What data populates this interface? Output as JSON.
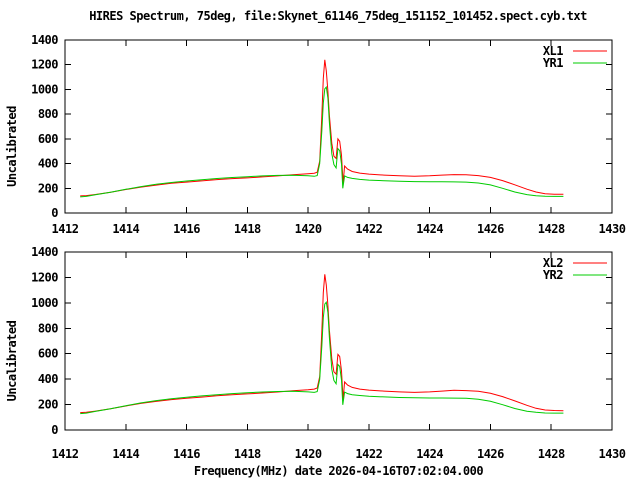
{
  "title": "HIRES Spectrum, 75deg, file:Skynet_61146_75deg_151152_101452.spect.cyb.txt",
  "colors": {
    "background": "#ffffff",
    "axis": "#000000",
    "xl_series": "#ff0000",
    "yr_series": "#00cc00"
  },
  "chart_data": [
    {
      "type": "line",
      "title": "",
      "xlabel": "",
      "ylabel": "Uncalibrated",
      "xlim": [
        1412,
        1430
      ],
      "ylim": [
        0,
        1400
      ],
      "xticks": [
        1412,
        1414,
        1416,
        1418,
        1420,
        1422,
        1424,
        1426,
        1428,
        1430
      ],
      "yticks": [
        0,
        200,
        400,
        600,
        800,
        1000,
        1200,
        1400
      ],
      "grid": false,
      "legend_position": "top-right",
      "series": [
        {
          "name": "XL1",
          "color": "#ff0000",
          "points": [
            [
              1412.5,
              138
            ],
            [
              1412.7,
              141
            ],
            [
              1413,
              150
            ],
            [
              1413.5,
              168
            ],
            [
              1414,
              190
            ],
            [
              1414.5,
              210
            ],
            [
              1415,
              226
            ],
            [
              1415.5,
              240
            ],
            [
              1416,
              250
            ],
            [
              1416.5,
              260
            ],
            [
              1417,
              270
            ],
            [
              1417.5,
              278
            ],
            [
              1418,
              284
            ],
            [
              1418.5,
              292
            ],
            [
              1419,
              300
            ],
            [
              1419.5,
              310
            ],
            [
              1420,
              318
            ],
            [
              1420.2,
              322
            ],
            [
              1420.3,
              330
            ],
            [
              1420.38,
              420
            ],
            [
              1420.45,
              780
            ],
            [
              1420.5,
              1090
            ],
            [
              1420.55,
              1240
            ],
            [
              1420.6,
              1150
            ],
            [
              1420.65,
              985
            ],
            [
              1420.7,
              790
            ],
            [
              1420.78,
              565
            ],
            [
              1420.85,
              460
            ],
            [
              1420.92,
              442
            ],
            [
              1420.98,
              600
            ],
            [
              1421.04,
              580
            ],
            [
              1421.1,
              468
            ],
            [
              1421.15,
              240
            ],
            [
              1421.2,
              380
            ],
            [
              1421.3,
              355
            ],
            [
              1421.45,
              336
            ],
            [
              1421.7,
              323
            ],
            [
              1422,
              315
            ],
            [
              1422.5,
              307
            ],
            [
              1423,
              301
            ],
            [
              1423.5,
              297
            ],
            [
              1424,
              301
            ],
            [
              1424.4,
              307
            ],
            [
              1424.8,
              311
            ],
            [
              1425.2,
              309
            ],
            [
              1425.6,
              303
            ],
            [
              1426,
              288
            ],
            [
              1426.4,
              262
            ],
            [
              1426.8,
              228
            ],
            [
              1427.2,
              193
            ],
            [
              1427.5,
              170
            ],
            [
              1427.8,
              156
            ],
            [
              1428.1,
              152
            ],
            [
              1428.4,
              151
            ]
          ]
        },
        {
          "name": "YR1",
          "color": "#00cc00",
          "points": [
            [
              1412.5,
              130
            ],
            [
              1412.7,
              134
            ],
            [
              1413,
              147
            ],
            [
              1413.5,
              168
            ],
            [
              1414,
              192
            ],
            [
              1414.5,
              214
            ],
            [
              1415,
              232
            ],
            [
              1415.5,
              247
            ],
            [
              1416,
              259
            ],
            [
              1416.5,
              269
            ],
            [
              1417,
              279
            ],
            [
              1417.5,
              287
            ],
            [
              1418,
              294
            ],
            [
              1418.5,
              300
            ],
            [
              1419,
              304
            ],
            [
              1419.5,
              305
            ],
            [
              1420,
              301
            ],
            [
              1420.2,
              297
            ],
            [
              1420.3,
              303
            ],
            [
              1420.38,
              400
            ],
            [
              1420.45,
              660
            ],
            [
              1420.5,
              890
            ],
            [
              1420.55,
              1005
            ],
            [
              1420.6,
              1020
            ],
            [
              1420.65,
              930
            ],
            [
              1420.7,
              730
            ],
            [
              1420.78,
              480
            ],
            [
              1420.85,
              392
            ],
            [
              1420.92,
              365
            ],
            [
              1420.98,
              520
            ],
            [
              1421.04,
              505
            ],
            [
              1421.1,
              395
            ],
            [
              1421.14,
              200
            ],
            [
              1421.2,
              300
            ],
            [
              1421.3,
              288
            ],
            [
              1421.45,
              280
            ],
            [
              1421.7,
              272
            ],
            [
              1422,
              266
            ],
            [
              1422.5,
              261
            ],
            [
              1423,
              257
            ],
            [
              1423.5,
              254
            ],
            [
              1424,
              253
            ],
            [
              1424.4,
              253
            ],
            [
              1424.8,
              252
            ],
            [
              1425.2,
              250
            ],
            [
              1425.6,
              243
            ],
            [
              1426,
              227
            ],
            [
              1426.4,
              200
            ],
            [
              1426.8,
              170
            ],
            [
              1427.2,
              149
            ],
            [
              1427.5,
              140
            ],
            [
              1427.8,
              135
            ],
            [
              1428.1,
              134
            ],
            [
              1428.4,
              134
            ]
          ]
        }
      ]
    },
    {
      "type": "line",
      "title": "",
      "xlabel": "Frequency(MHz) date 2026-04-16T07:02:04.000",
      "ylabel": "Uncalibrated",
      "xlim": [
        1412,
        1430
      ],
      "ylim": [
        0,
        1400
      ],
      "xticks": [
        1412,
        1414,
        1416,
        1418,
        1420,
        1422,
        1424,
        1426,
        1428,
        1430
      ],
      "yticks": [
        0,
        200,
        400,
        600,
        800,
        1000,
        1200,
        1400
      ],
      "grid": false,
      "legend_position": "top-right",
      "series": [
        {
          "name": "XL2",
          "color": "#ff0000",
          "points": [
            [
              1412.5,
              137
            ],
            [
              1412.7,
              140
            ],
            [
              1413,
              149
            ],
            [
              1413.5,
              167
            ],
            [
              1414,
              189
            ],
            [
              1414.5,
              209
            ],
            [
              1415,
              225
            ],
            [
              1415.5,
              239
            ],
            [
              1416,
              250
            ],
            [
              1416.5,
              259
            ],
            [
              1417,
              269
            ],
            [
              1417.5,
              277
            ],
            [
              1418,
              284
            ],
            [
              1418.5,
              291
            ],
            [
              1419,
              299
            ],
            [
              1419.5,
              309
            ],
            [
              1420,
              317
            ],
            [
              1420.2,
              322
            ],
            [
              1420.3,
              330
            ],
            [
              1420.38,
              420
            ],
            [
              1420.45,
              770
            ],
            [
              1420.5,
              1080
            ],
            [
              1420.55,
              1225
            ],
            [
              1420.6,
              1140
            ],
            [
              1420.65,
              980
            ],
            [
              1420.7,
              785
            ],
            [
              1420.78,
              560
            ],
            [
              1420.85,
              458
            ],
            [
              1420.92,
              440
            ],
            [
              1420.98,
              595
            ],
            [
              1421.04,
              578
            ],
            [
              1421.1,
              465
            ],
            [
              1421.15,
              238
            ],
            [
              1421.2,
              378
            ],
            [
              1421.3,
              353
            ],
            [
              1421.45,
              335
            ],
            [
              1421.7,
              322
            ],
            [
              1422,
              314
            ],
            [
              1422.5,
              306
            ],
            [
              1423,
              300
            ],
            [
              1423.5,
              296
            ],
            [
              1424,
              300
            ],
            [
              1424.4,
              306
            ],
            [
              1424.8,
              312
            ],
            [
              1425.2,
              310
            ],
            [
              1425.6,
              304
            ],
            [
              1426,
              289
            ],
            [
              1426.4,
              263
            ],
            [
              1426.8,
              229
            ],
            [
              1427.2,
              194
            ],
            [
              1427.5,
              171
            ],
            [
              1427.8,
              157
            ],
            [
              1428.1,
              153
            ],
            [
              1428.4,
              152
            ]
          ]
        },
        {
          "name": "YR2",
          "color": "#00cc00",
          "points": [
            [
              1412.5,
              129
            ],
            [
              1412.7,
              133
            ],
            [
              1413,
              146
            ],
            [
              1413.5,
              167
            ],
            [
              1414,
              191
            ],
            [
              1414.5,
              213
            ],
            [
              1415,
              231
            ],
            [
              1415.5,
              246
            ],
            [
              1416,
              258
            ],
            [
              1416.5,
              268
            ],
            [
              1417,
              278
            ],
            [
              1417.5,
              286
            ],
            [
              1418,
              293
            ],
            [
              1418.5,
              299
            ],
            [
              1419,
              303
            ],
            [
              1419.5,
              304
            ],
            [
              1420,
              300
            ],
            [
              1420.2,
              296
            ],
            [
              1420.3,
              302
            ],
            [
              1420.38,
              398
            ],
            [
              1420.45,
              655
            ],
            [
              1420.5,
              885
            ],
            [
              1420.55,
              990
            ],
            [
              1420.6,
              1005
            ],
            [
              1420.65,
              925
            ],
            [
              1420.7,
              725
            ],
            [
              1420.78,
              478
            ],
            [
              1420.85,
              390
            ],
            [
              1420.92,
              363
            ],
            [
              1420.98,
              515
            ],
            [
              1421.04,
              500
            ],
            [
              1421.1,
              392
            ],
            [
              1421.14,
              198
            ],
            [
              1421.2,
              298
            ],
            [
              1421.3,
              286
            ],
            [
              1421.45,
              278
            ],
            [
              1421.7,
              271
            ],
            [
              1422,
              265
            ],
            [
              1422.5,
              260
            ],
            [
              1423,
              256
            ],
            [
              1423.5,
              253
            ],
            [
              1424,
              252
            ],
            [
              1424.4,
              252
            ],
            [
              1424.8,
              251
            ],
            [
              1425.2,
              249
            ],
            [
              1425.6,
              242
            ],
            [
              1426,
              226
            ],
            [
              1426.4,
              199
            ],
            [
              1426.8,
              169
            ],
            [
              1427.2,
              148
            ],
            [
              1427.5,
              139
            ],
            [
              1427.8,
              134
            ],
            [
              1428.1,
              133
            ],
            [
              1428.4,
              133
            ]
          ]
        }
      ]
    }
  ]
}
